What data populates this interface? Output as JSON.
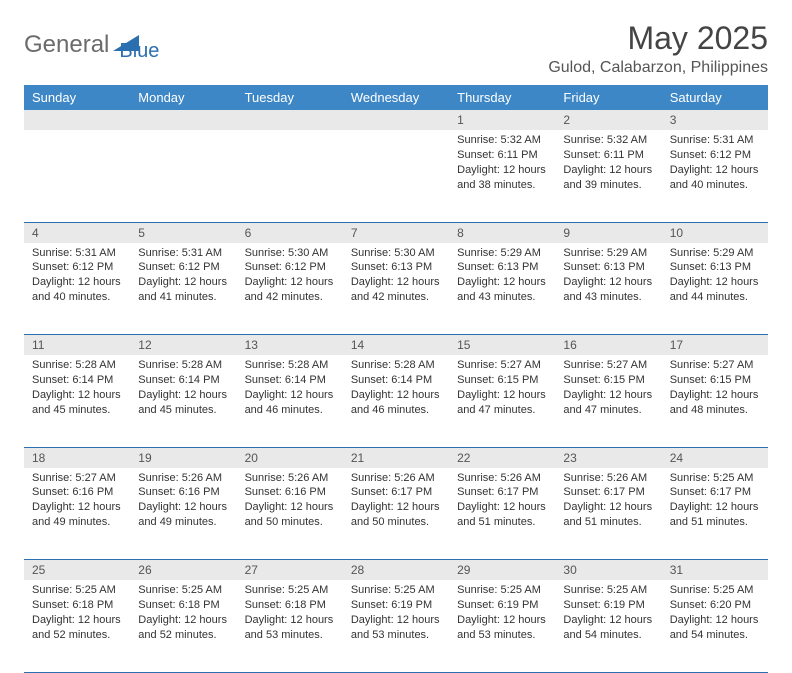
{
  "logo": {
    "part1": "General",
    "part2": "Blue"
  },
  "title": "May 2025",
  "location": "Gulod, Calabarzon, Philippines",
  "weekdays": [
    "Sunday",
    "Monday",
    "Tuesday",
    "Wednesday",
    "Thursday",
    "Friday",
    "Saturday"
  ],
  "colors": {
    "header_bg": "#3d87c7",
    "header_fg": "#ffffff",
    "rule": "#2b6fb0",
    "daynum_bg": "#e9e9e9",
    "logo_gray": "#6b6b6b",
    "logo_blue": "#2b6fb0"
  },
  "weeks": [
    [
      null,
      null,
      null,
      null,
      {
        "d": "1",
        "sr": "5:32 AM",
        "ss": "6:11 PM",
        "dl": "12 hours and 38 minutes."
      },
      {
        "d": "2",
        "sr": "5:32 AM",
        "ss": "6:11 PM",
        "dl": "12 hours and 39 minutes."
      },
      {
        "d": "3",
        "sr": "5:31 AM",
        "ss": "6:12 PM",
        "dl": "12 hours and 40 minutes."
      }
    ],
    [
      {
        "d": "4",
        "sr": "5:31 AM",
        "ss": "6:12 PM",
        "dl": "12 hours and 40 minutes."
      },
      {
        "d": "5",
        "sr": "5:31 AM",
        "ss": "6:12 PM",
        "dl": "12 hours and 41 minutes."
      },
      {
        "d": "6",
        "sr": "5:30 AM",
        "ss": "6:12 PM",
        "dl": "12 hours and 42 minutes."
      },
      {
        "d": "7",
        "sr": "5:30 AM",
        "ss": "6:13 PM",
        "dl": "12 hours and 42 minutes."
      },
      {
        "d": "8",
        "sr": "5:29 AM",
        "ss": "6:13 PM",
        "dl": "12 hours and 43 minutes."
      },
      {
        "d": "9",
        "sr": "5:29 AM",
        "ss": "6:13 PM",
        "dl": "12 hours and 43 minutes."
      },
      {
        "d": "10",
        "sr": "5:29 AM",
        "ss": "6:13 PM",
        "dl": "12 hours and 44 minutes."
      }
    ],
    [
      {
        "d": "11",
        "sr": "5:28 AM",
        "ss": "6:14 PM",
        "dl": "12 hours and 45 minutes."
      },
      {
        "d": "12",
        "sr": "5:28 AM",
        "ss": "6:14 PM",
        "dl": "12 hours and 45 minutes."
      },
      {
        "d": "13",
        "sr": "5:28 AM",
        "ss": "6:14 PM",
        "dl": "12 hours and 46 minutes."
      },
      {
        "d": "14",
        "sr": "5:28 AM",
        "ss": "6:14 PM",
        "dl": "12 hours and 46 minutes."
      },
      {
        "d": "15",
        "sr": "5:27 AM",
        "ss": "6:15 PM",
        "dl": "12 hours and 47 minutes."
      },
      {
        "d": "16",
        "sr": "5:27 AM",
        "ss": "6:15 PM",
        "dl": "12 hours and 47 minutes."
      },
      {
        "d": "17",
        "sr": "5:27 AM",
        "ss": "6:15 PM",
        "dl": "12 hours and 48 minutes."
      }
    ],
    [
      {
        "d": "18",
        "sr": "5:27 AM",
        "ss": "6:16 PM",
        "dl": "12 hours and 49 minutes."
      },
      {
        "d": "19",
        "sr": "5:26 AM",
        "ss": "6:16 PM",
        "dl": "12 hours and 49 minutes."
      },
      {
        "d": "20",
        "sr": "5:26 AM",
        "ss": "6:16 PM",
        "dl": "12 hours and 50 minutes."
      },
      {
        "d": "21",
        "sr": "5:26 AM",
        "ss": "6:17 PM",
        "dl": "12 hours and 50 minutes."
      },
      {
        "d": "22",
        "sr": "5:26 AM",
        "ss": "6:17 PM",
        "dl": "12 hours and 51 minutes."
      },
      {
        "d": "23",
        "sr": "5:26 AM",
        "ss": "6:17 PM",
        "dl": "12 hours and 51 minutes."
      },
      {
        "d": "24",
        "sr": "5:25 AM",
        "ss": "6:17 PM",
        "dl": "12 hours and 51 minutes."
      }
    ],
    [
      {
        "d": "25",
        "sr": "5:25 AM",
        "ss": "6:18 PM",
        "dl": "12 hours and 52 minutes."
      },
      {
        "d": "26",
        "sr": "5:25 AM",
        "ss": "6:18 PM",
        "dl": "12 hours and 52 minutes."
      },
      {
        "d": "27",
        "sr": "5:25 AM",
        "ss": "6:18 PM",
        "dl": "12 hours and 53 minutes."
      },
      {
        "d": "28",
        "sr": "5:25 AM",
        "ss": "6:19 PM",
        "dl": "12 hours and 53 minutes."
      },
      {
        "d": "29",
        "sr": "5:25 AM",
        "ss": "6:19 PM",
        "dl": "12 hours and 53 minutes."
      },
      {
        "d": "30",
        "sr": "5:25 AM",
        "ss": "6:19 PM",
        "dl": "12 hours and 54 minutes."
      },
      {
        "d": "31",
        "sr": "5:25 AM",
        "ss": "6:20 PM",
        "dl": "12 hours and 54 minutes."
      }
    ]
  ],
  "labels": {
    "sunrise": "Sunrise:",
    "sunset": "Sunset:",
    "daylight": "Daylight:"
  }
}
